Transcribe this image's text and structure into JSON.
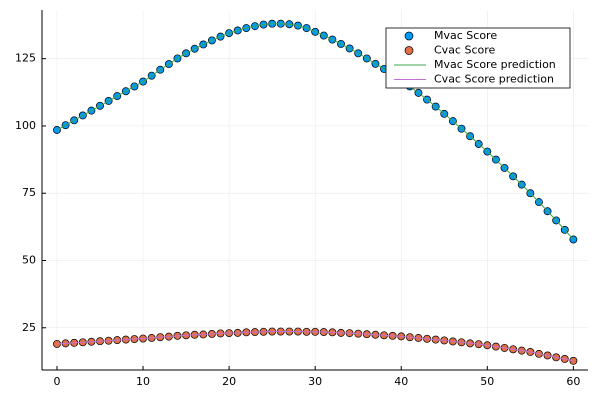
{
  "chart_data": {
    "type": "scatter",
    "x": [
      0,
      1,
      2,
      3,
      4,
      5,
      6,
      7,
      8,
      9,
      10,
      11,
      12,
      13,
      14,
      15,
      16,
      17,
      18,
      19,
      20,
      21,
      22,
      23,
      24,
      25,
      26,
      27,
      28,
      29,
      30,
      31,
      32,
      33,
      34,
      35,
      36,
      37,
      38,
      39,
      40,
      41,
      42,
      43,
      44,
      45,
      46,
      47,
      48,
      49,
      50,
      51,
      52,
      53,
      54,
      55,
      56,
      57,
      58,
      59,
      60
    ],
    "series": [
      {
        "name": "Mvac Score",
        "color": "#009afa",
        "kind": "scatter",
        "values": [
          98.5,
          100.3,
          102.1,
          103.9,
          105.7,
          107.5,
          109.3,
          111.1,
          112.9,
          114.7,
          116.5,
          118.7,
          120.9,
          123,
          125.1,
          127,
          128.7,
          130.3,
          131.8,
          133.2,
          134.5,
          135.5,
          136.4,
          137.1,
          137.7,
          138,
          138,
          137.8,
          137.3,
          136.4,
          135,
          133.6,
          132.1,
          130.5,
          128.8,
          127,
          125.1,
          123.1,
          121.2,
          119.1,
          117,
          114.7,
          112.3,
          109.8,
          107.2,
          104.5,
          101.8,
          99,
          96.2,
          93.3,
          90.5,
          87.5,
          84.4,
          81.3,
          78.2,
          75,
          71.7,
          68.3,
          64.9,
          61.4,
          57.8
        ]
      },
      {
        "name": "Cvac Score",
        "color": "#e36f47",
        "kind": "scatter",
        "values": [
          19,
          19.2,
          19.4,
          19.6,
          19.8,
          20,
          20.2,
          20.4,
          20.6,
          20.8,
          21,
          21.2,
          21.5,
          21.7,
          22,
          22.2,
          22.4,
          22.5,
          22.7,
          22.9,
          23,
          23.1,
          23.3,
          23.4,
          23.5,
          23.6,
          23.6,
          23.6,
          23.6,
          23.5,
          23.5,
          23.4,
          23.3,
          23.1,
          23,
          22.8,
          22.6,
          22.4,
          22.2,
          22,
          21.8,
          21.5,
          21.2,
          20.9,
          20.6,
          20.3,
          19.9,
          19.6,
          19.2,
          18.9,
          18.5,
          18,
          17.5,
          17,
          16.5,
          16,
          15.3,
          14.7,
          14,
          13.4,
          12.7
        ]
      },
      {
        "name": "Mvac Score prediction",
        "color": "#3da44d",
        "kind": "line",
        "values": [
          98.5,
          100.3,
          102.1,
          103.9,
          105.7,
          107.5,
          109.3,
          111.1,
          112.9,
          114.7,
          116.5,
          118.7,
          120.9,
          123,
          125.1,
          127,
          128.7,
          130.3,
          131.8,
          133.2,
          134.5,
          135.5,
          136.4,
          137.1,
          137.7,
          138,
          138,
          137.8,
          137.3,
          136.4,
          135,
          133.6,
          132.1,
          130.5,
          128.8,
          127,
          125.1,
          123.1,
          121.2,
          119.1,
          117,
          114.7,
          112.3,
          109.8,
          107.2,
          104.5,
          101.8,
          99,
          96.2,
          93.3,
          90.5,
          87.5,
          84.4,
          81.3,
          78.2,
          75,
          71.7,
          68.3,
          64.9,
          61.4,
          57.8
        ]
      },
      {
        "name": "Cvac Score prediction",
        "color": "#c271d2",
        "kind": "line",
        "values": [
          19,
          19.2,
          19.4,
          19.6,
          19.8,
          20,
          20.2,
          20.4,
          20.6,
          20.8,
          21,
          21.2,
          21.5,
          21.7,
          22,
          22.2,
          22.4,
          22.5,
          22.7,
          22.9,
          23,
          23.1,
          23.3,
          23.4,
          23.5,
          23.6,
          23.6,
          23.6,
          23.6,
          23.5,
          23.5,
          23.4,
          23.3,
          23.1,
          23,
          22.8,
          22.6,
          22.4,
          22.2,
          22,
          21.8,
          21.5,
          21.2,
          20.9,
          20.6,
          20.3,
          19.9,
          19.6,
          19.2,
          18.9,
          18.5,
          18,
          17.5,
          17,
          16.5,
          16,
          15.3,
          14.7,
          14,
          13.4,
          12.7
        ]
      }
    ],
    "xlim": [
      -1.74,
      61.7
    ],
    "ylim": [
      9.3,
      143.1
    ],
    "xticks": [
      0,
      10,
      20,
      30,
      40,
      50,
      60
    ],
    "yticks": [
      25,
      50,
      75,
      100,
      125
    ],
    "grid": true,
    "legend": "top-right"
  }
}
